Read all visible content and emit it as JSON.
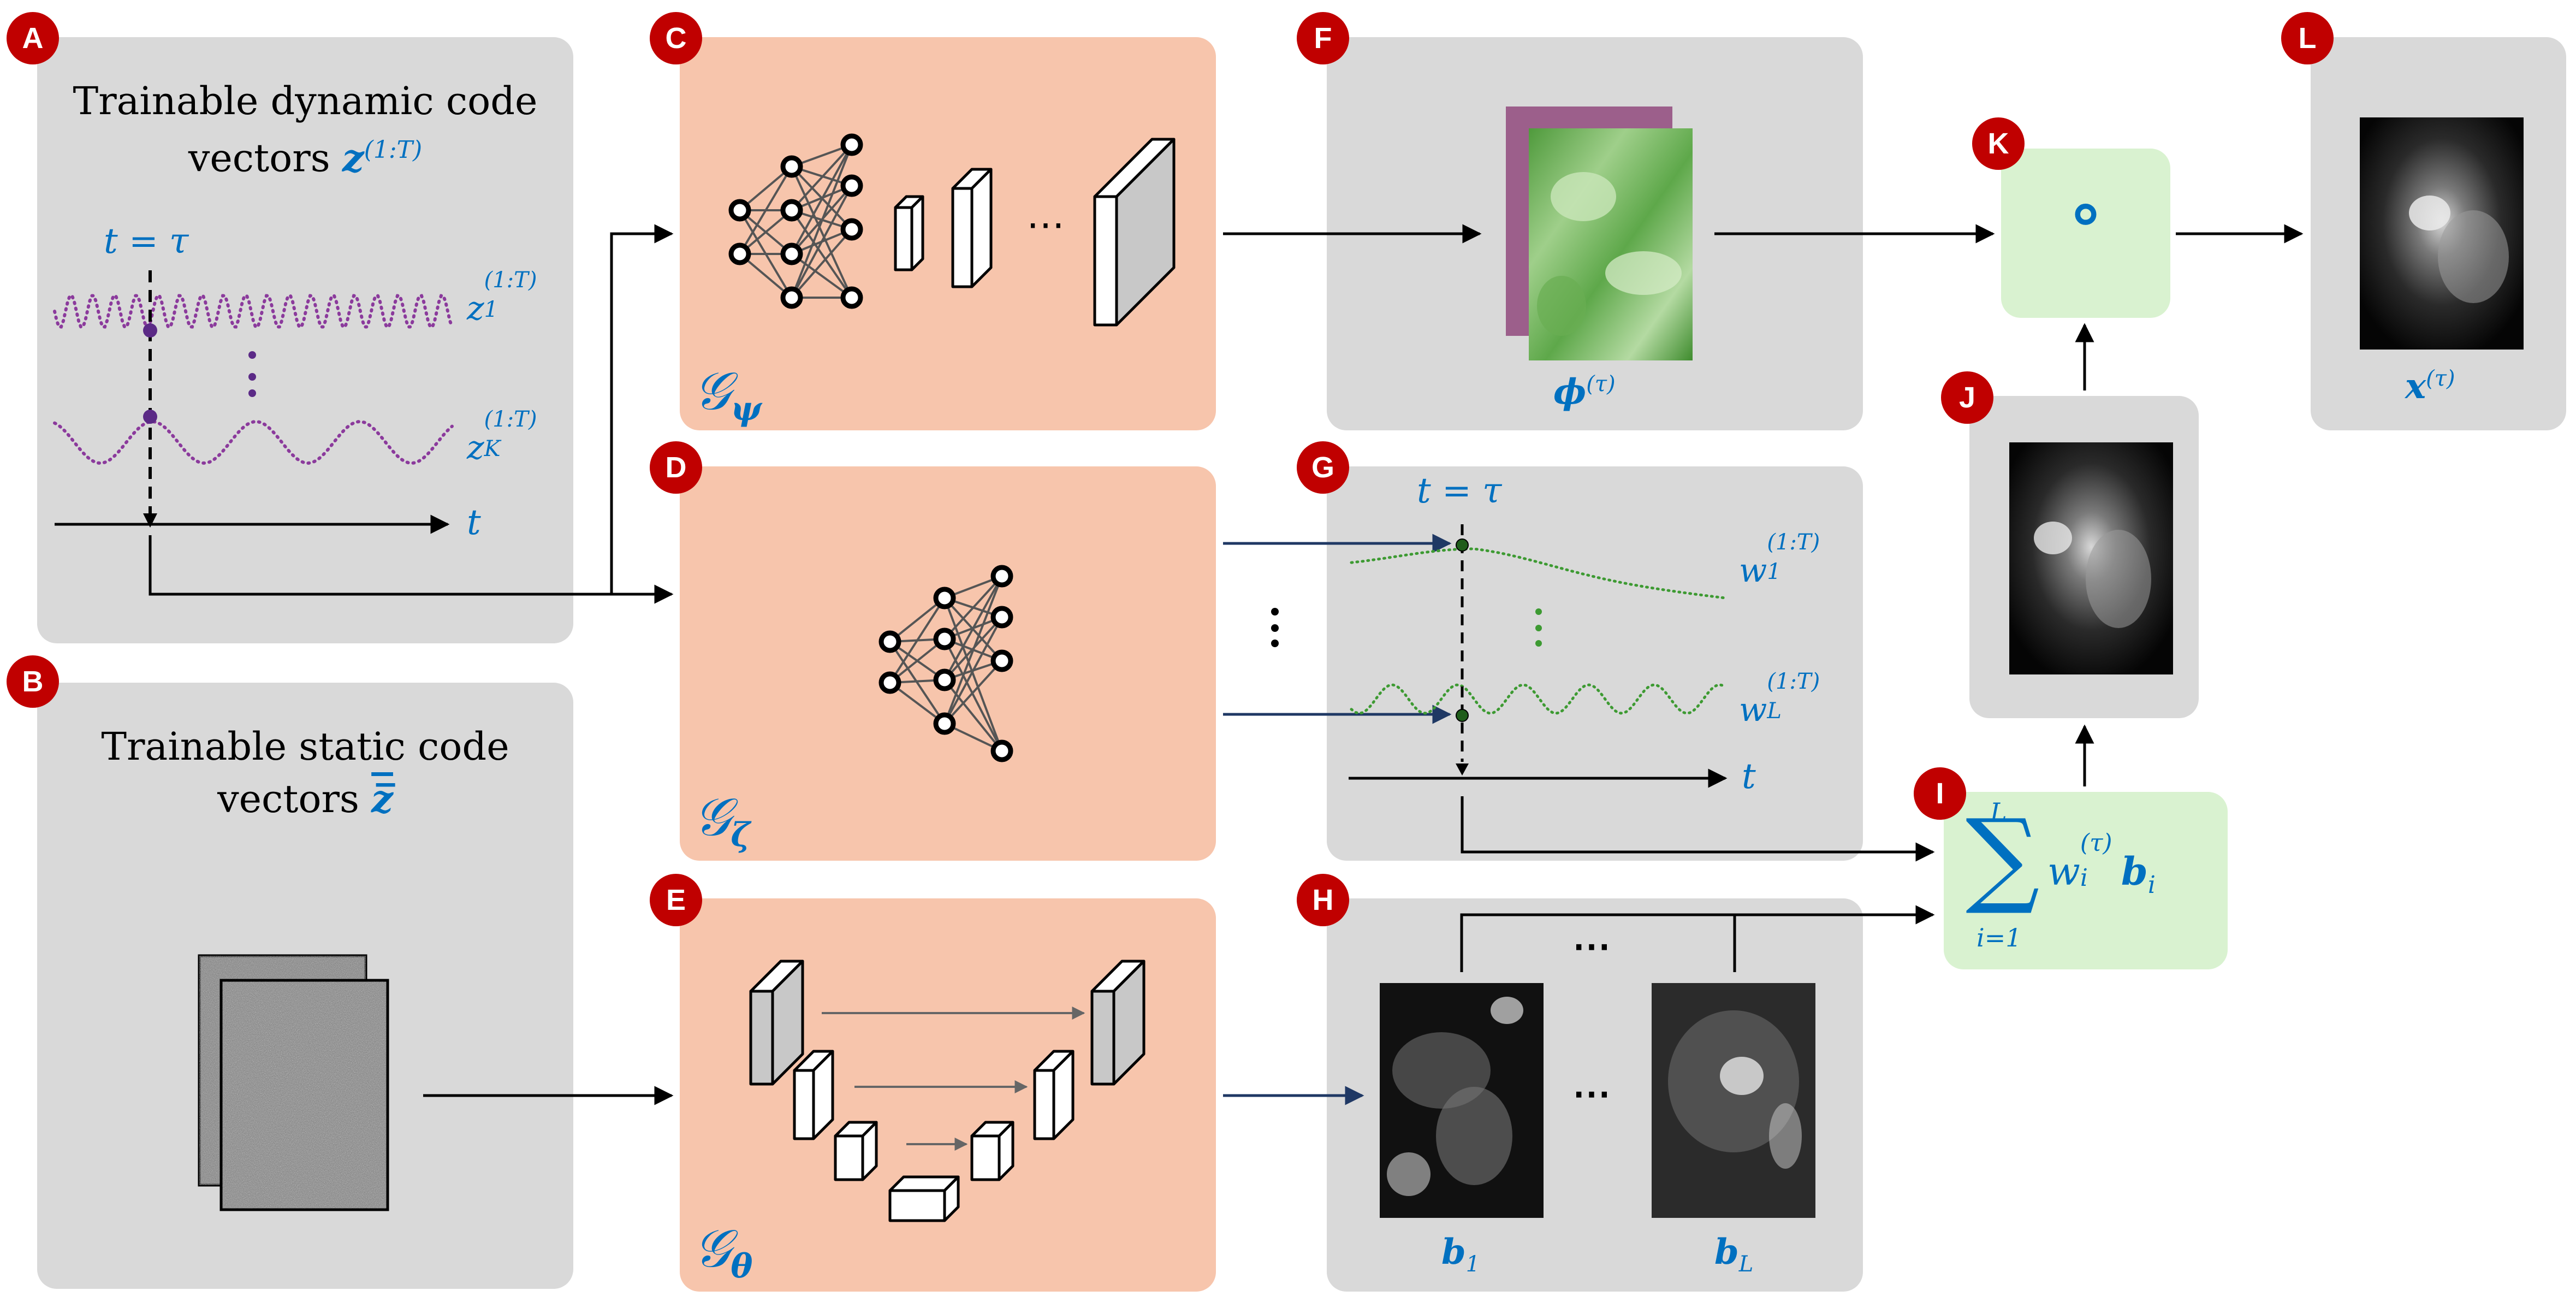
{
  "badges": [
    "A",
    "B",
    "C",
    "D",
    "E",
    "F",
    "G",
    "H",
    "I",
    "J",
    "K",
    "L"
  ],
  "panel_a": {
    "title_line1": "Trainable dynamic code",
    "title_line2": "vectors",
    "vector_symbol": "z",
    "vector_sup": "(1:T)",
    "time_marker": "t = τ",
    "series1_label": "z",
    "series1_sub": "1",
    "series1_sup": "(1:T)",
    "seriesK_label": "z",
    "seriesK_sub": "K",
    "seriesK_sup": "(1:T)",
    "axis_label": "t"
  },
  "panel_b": {
    "title_line1": "Trainable static code",
    "title_line2": "vectors",
    "vector_symbol": "z̅"
  },
  "panel_c": {
    "net_symbol": "𝒢",
    "net_sub": "ψ",
    "ellipsis": "⋯"
  },
  "panel_d": {
    "net_symbol": "𝒢",
    "net_sub": "ζ"
  },
  "panel_e": {
    "net_symbol": "𝒢",
    "net_sub": "θ"
  },
  "panel_f": {
    "symbol": "ϕ",
    "sup": "(τ)"
  },
  "panel_g": {
    "time_marker": "t = τ",
    "series1_label": "w",
    "series1_sub": "1",
    "series1_sup": "(1:T)",
    "seriesL_label": "w",
    "seriesL_sub": "L",
    "seriesL_sup": "(1:T)",
    "axis_label": "t"
  },
  "panel_h": {
    "b1_label": "b",
    "b1_sub": "1",
    "bL_label": "b",
    "bL_sub": "L",
    "ellipsis": "⋯",
    "top_ellipsis": "⋯"
  },
  "panel_i": {
    "sum_upper": "L",
    "sum_lower": "i=1",
    "w": "w",
    "w_sub": "i",
    "w_sup": "(τ)",
    "b": "b",
    "b_sub": "i"
  },
  "panel_k": {
    "operator": "∘"
  },
  "panel_l": {
    "symbol": "x",
    "sup": "(τ)"
  },
  "between_dots": "⋮",
  "colors": {
    "blue": "#0070c0",
    "purple": "#7030a0",
    "green": "#3d9a32",
    "badge": "#c00000",
    "gray": "#d9d9d9",
    "peach": "#f7c5ac",
    "lightgreen": "#d9f2d0"
  }
}
